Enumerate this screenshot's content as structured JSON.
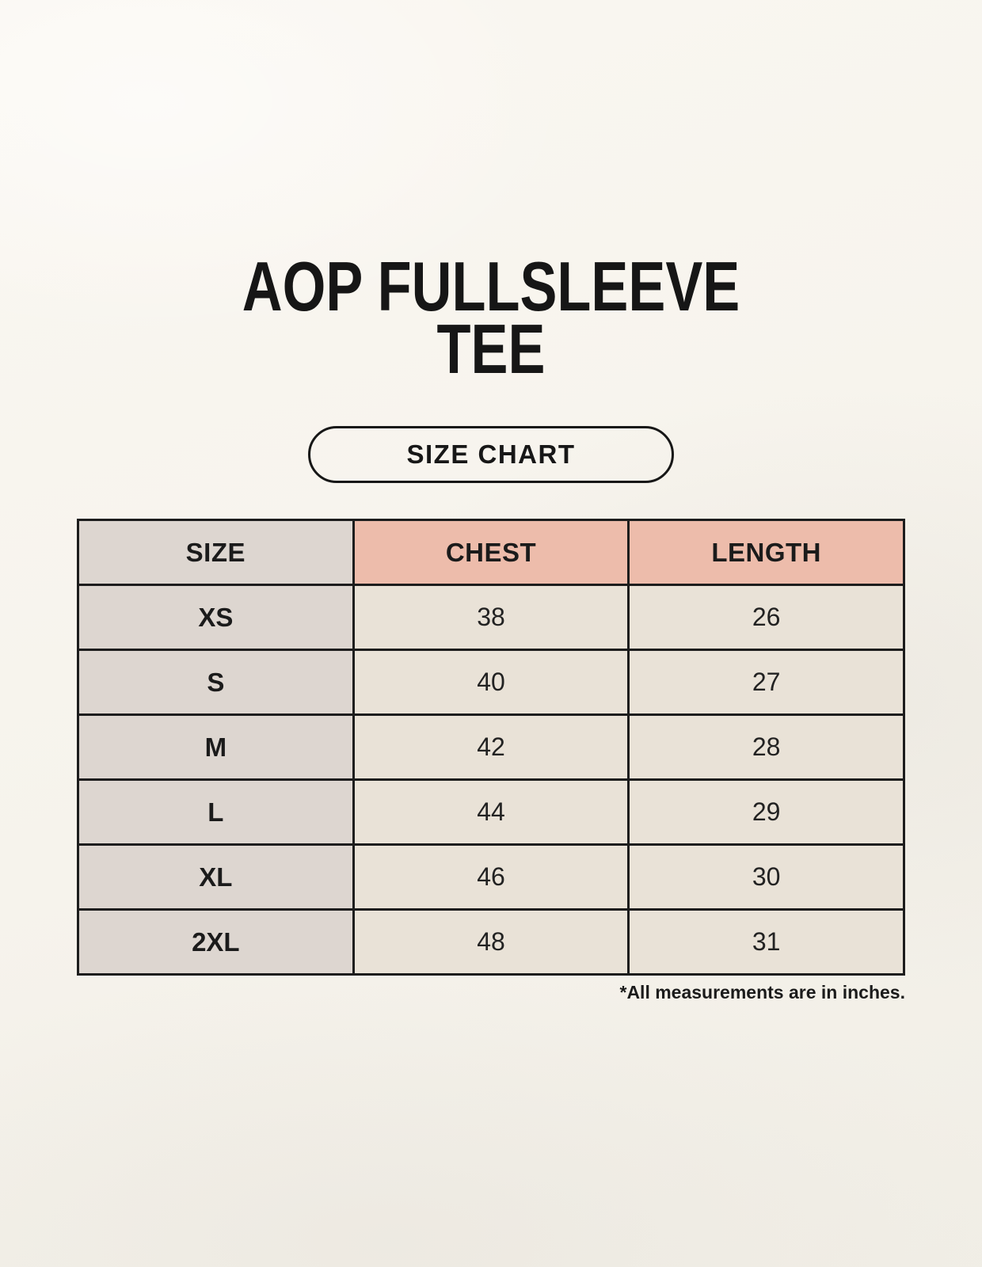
{
  "page": {
    "title_line1": "AOP FULLSLEEVE",
    "title_line2": "TEE",
    "size_chart_button_label": "SIZE CHART",
    "footnote": "*All measurements are in inches."
  },
  "size_table": {
    "columns": [
      "SIZE",
      "CHEST",
      "LENGTH"
    ],
    "rows": [
      {
        "size": "XS",
        "chest": "38",
        "length": "26"
      },
      {
        "size": "S",
        "chest": "40",
        "length": "27"
      },
      {
        "size": "M",
        "chest": "42",
        "length": "28"
      },
      {
        "size": "L",
        "chest": "44",
        "length": "29"
      },
      {
        "size": "XL",
        "chest": "46",
        "length": "30"
      },
      {
        "size": "2XL",
        "chest": "48",
        "length": "31"
      }
    ],
    "units": "inches"
  },
  "colors": {
    "background": "#f6f3ec",
    "size_column_bg": "#ddd6d0",
    "measurement_header_bg": "#edbcab",
    "value_cell_bg": "#e9e2d7",
    "table_border": "#1d1d1d",
    "text": "#161616"
  }
}
